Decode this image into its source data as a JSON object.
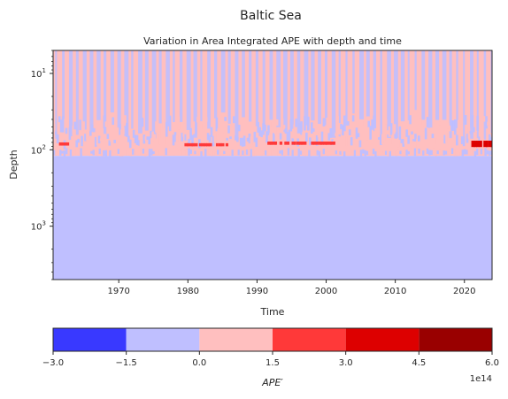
{
  "figure": {
    "suptitle": "Baltic Sea"
  },
  "chart_data": {
    "type": "heatmap",
    "title": "Variation in Area Integrated APE with depth and time",
    "xlabel": "Time",
    "ylabel": "Depth",
    "x_range": [
      1960.5,
      2024.0
    ],
    "x_ticks": [
      1970,
      1980,
      1990,
      2000,
      2010,
      2020
    ],
    "x_tick_labels": [
      "1970",
      "1980",
      "1990",
      "2000",
      "2010",
      "2020"
    ],
    "y_scale": "log",
    "y_inverted": true,
    "y_range": [
      5,
      5000
    ],
    "y_major_ticks": [
      10,
      100,
      1000
    ],
    "y_tick_labels": [
      {
        "base": "10",
        "exp": "1"
      },
      {
        "base": "10",
        "exp": "2"
      },
      {
        "base": "10",
        "exp": "3"
      }
    ],
    "grid": false,
    "bands": [
      {
        "depth_top": 5,
        "depth_bottom": 72,
        "level": "0.0 to 1.5",
        "color": "#ffbfbf",
        "pattern": "stripes_with_blue",
        "stripe_color": "#bfbfff"
      },
      {
        "depth_top": 72,
        "depth_bottom": 120,
        "level": "mixed",
        "color": "#ffbfbf",
        "pattern": "mixed"
      },
      {
        "depth_top": 120,
        "depth_bottom": 5000,
        "level": "-1.5 to 0.0",
        "color": "#bfbfff",
        "pattern": "solid"
      }
    ],
    "hot_spots": [
      {
        "x_start": 2021.0,
        "x_end": 2023.9,
        "depth_top": 76,
        "depth_bottom": 92,
        "color": "#dd0000"
      },
      {
        "x_start": 1991.5,
        "x_end": 2001.0,
        "depth_top": 78,
        "depth_bottom": 86,
        "color": "#ff3a3a"
      },
      {
        "x_start": 1979.5,
        "x_end": 1985.5,
        "depth_top": 82,
        "depth_bottom": 90,
        "color": "#ff3a3a"
      },
      {
        "x_start": 1961.0,
        "x_end": 1962.5,
        "depth_top": 80,
        "depth_bottom": 88,
        "color": "#ff3a3a"
      }
    ],
    "colorbar": {
      "boundaries": [
        -3.0,
        -1.5,
        0.0,
        1.5,
        3.0,
        4.5,
        6.0
      ],
      "tick_labels": [
        "−3.0",
        "−1.5",
        "0.0",
        "1.5",
        "3.0",
        "4.5",
        "6.0"
      ],
      "colors": [
        "#3939ff",
        "#bfbfff",
        "#ffbfbf",
        "#ff3939",
        "#dd0000",
        "#990000"
      ],
      "label": "APE′",
      "offset_text": "1e14"
    }
  }
}
